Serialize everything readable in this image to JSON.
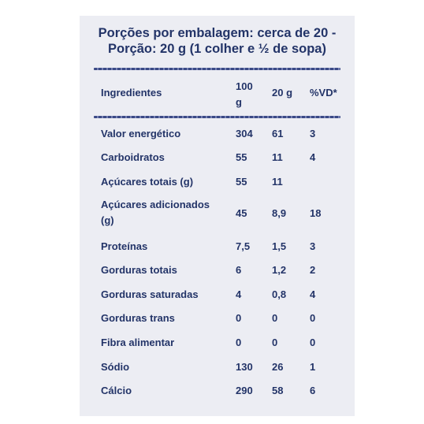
{
  "header": {
    "line1": "Porções por embalagem: cerca de 20 -",
    "line2": "Porção: 20 g (1 colher e ½ de sopa)"
  },
  "columns": {
    "name": "Ingredientes",
    "per100_line1": "100",
    "per100_line2": "g",
    "per20": "20 g",
    "vd": "%VD*"
  },
  "rows": [
    {
      "name": "Valor energético",
      "per100": "304",
      "per20": "61",
      "vd": "3"
    },
    {
      "name": "Carboidratos",
      "per100": "55",
      "per20": "11",
      "vd": "4"
    },
    {
      "name": "Açúcares totais (g)",
      "per100": "55",
      "per20": "11",
      "vd": ""
    },
    {
      "name_line1": "Açúcares adicionados",
      "name_line2": "(g)",
      "per100": "45",
      "per20": "8,9",
      "vd": "18"
    },
    {
      "name": "Proteínas",
      "per100": "7,5",
      "per20": "1,5",
      "vd": "3"
    },
    {
      "name": "Gorduras totais",
      "per100": "6",
      "per20": "1,2",
      "vd": "2"
    },
    {
      "name": "Gorduras saturadas",
      "per100": "4",
      "per20": "0,8",
      "vd": "4"
    },
    {
      "name": "Gorduras trans",
      "per100": "0",
      "per20": "0",
      "vd": "0"
    },
    {
      "name": "Fibra alimentar",
      "per100": "0",
      "per20": "0",
      "vd": "0"
    },
    {
      "name": "Sódio",
      "per100": "130",
      "per20": "26",
      "vd": "1"
    },
    {
      "name": "Cálcio",
      "per100": "290",
      "per20": "58",
      "vd": "6"
    }
  ]
}
